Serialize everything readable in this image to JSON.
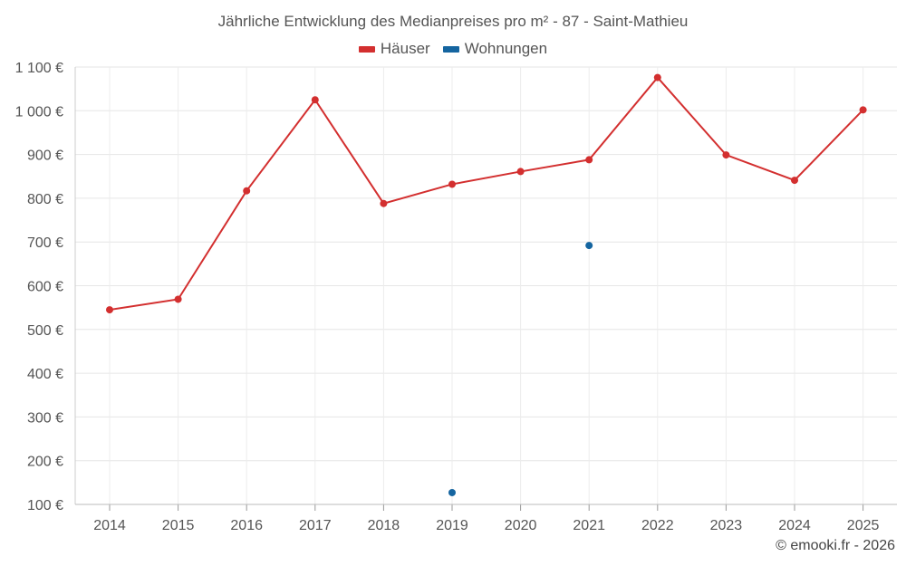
{
  "chart_data": {
    "type": "line",
    "title": "Jährliche Entwicklung des Medianpreises pro m² - 87 - Saint-Mathieu",
    "categories": [
      "2014",
      "2015",
      "2016",
      "2017",
      "2018",
      "2019",
      "2020",
      "2021",
      "2022",
      "2023",
      "2024",
      "2025"
    ],
    "series": [
      {
        "name": "Häuser",
        "color": "#d32f2f",
        "values": [
          545,
          569,
          817,
          1025,
          788,
          832,
          861,
          888,
          1076,
          899,
          841,
          1002
        ]
      },
      {
        "name": "Wohnungen",
        "color": "#1565a0",
        "values": [
          null,
          null,
          null,
          null,
          null,
          127,
          null,
          692,
          null,
          null,
          null,
          null
        ]
      }
    ],
    "ylim": [
      100,
      1100
    ],
    "yticks": [
      100,
      200,
      300,
      400,
      500,
      600,
      700,
      800,
      900,
      1000,
      1100
    ],
    "ytick_labels": [
      "100 €",
      "200 €",
      "300 €",
      "400 €",
      "500 €",
      "600 €",
      "700 €",
      "800 €",
      "900 €",
      "1 000 €",
      "1 100 €"
    ],
    "xlabel": "",
    "ylabel": "",
    "grid": true,
    "legend_position": "top-center"
  },
  "credit": "© emooki.fr - 2026"
}
